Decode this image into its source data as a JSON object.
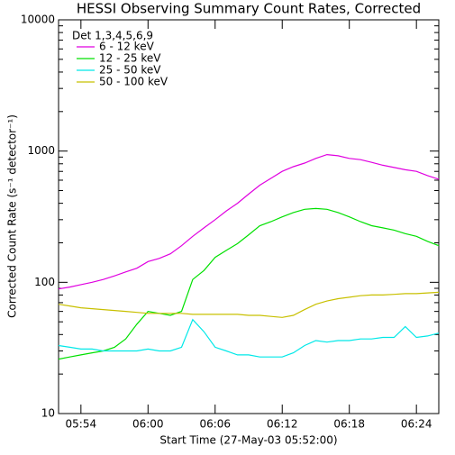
{
  "chart_data": {
    "type": "line",
    "title": "HESSI Observing Summary Count Rates, Corrected",
    "x_label": "Start Time (27-May-03 05:52:00)",
    "y_label": "Corrected Count Rate (s⁻¹ detector⁻¹)",
    "legend_title": "Det 1,3,4,5,6,9",
    "y_scale": "log",
    "x": [
      "05:52",
      "05:53",
      "05:54",
      "05:55",
      "05:56",
      "05:57",
      "05:58",
      "05:59",
      "06:00",
      "06:01",
      "06:02",
      "06:03",
      "06:04",
      "06:05",
      "06:06",
      "06:07",
      "06:08",
      "06:09",
      "06:10",
      "06:11",
      "06:12",
      "06:13",
      "06:14",
      "06:15",
      "06:16",
      "06:17",
      "06:18",
      "06:19",
      "06:20",
      "06:21",
      "06:22",
      "06:23",
      "06:24",
      "06:25",
      "06:26"
    ],
    "series": [
      {
        "name": "6 - 12 keV",
        "color": "#e000e0",
        "values": [
          89,
          92,
          96,
          100,
          105,
          112,
          120,
          128,
          144,
          152,
          165,
          190,
          224,
          260,
          300,
          350,
          400,
          470,
          550,
          620,
          700,
          760,
          810,
          880,
          940,
          920,
          880,
          860,
          820,
          780,
          750,
          720,
          700,
          650,
          610
        ]
      },
      {
        "name": "12 - 25 keV",
        "color": "#00e000",
        "values": [
          26,
          27,
          28,
          29,
          30,
          32,
          37,
          48,
          60,
          58,
          56,
          60,
          105,
          123,
          155,
          175,
          197,
          230,
          270,
          290,
          315,
          340,
          360,
          365,
          360,
          340,
          315,
          290,
          270,
          260,
          250,
          235,
          224,
          205,
          190
        ]
      },
      {
        "name": "25 - 50 keV",
        "color": "#00e8e8",
        "values": [
          33,
          32,
          31,
          31,
          30,
          30,
          30,
          30,
          31,
          30,
          30,
          32,
          52,
          42,
          32,
          30,
          28,
          28,
          27,
          27,
          27,
          29,
          33,
          36,
          35,
          36,
          36,
          37,
          37,
          38,
          38,
          46,
          38,
          39,
          41
        ]
      },
      {
        "name": "50 - 100 keV",
        "color": "#c8c000",
        "values": [
          68,
          66,
          64,
          63,
          62,
          61,
          60,
          59,
          58,
          58,
          58,
          58,
          57,
          57,
          57,
          57,
          57,
          56,
          56,
          55,
          54,
          56,
          62,
          68,
          72,
          75,
          77,
          79,
          80,
          80,
          81,
          82,
          82,
          83,
          84
        ]
      }
    ],
    "xlim": [
      "05:52",
      "06:26"
    ],
    "xticks": [
      "05:54",
      "06:00",
      "06:06",
      "06:12",
      "06:18",
      "06:24"
    ],
    "ylim": [
      10,
      10000
    ],
    "yticks": [
      10,
      100,
      1000,
      10000
    ]
  }
}
